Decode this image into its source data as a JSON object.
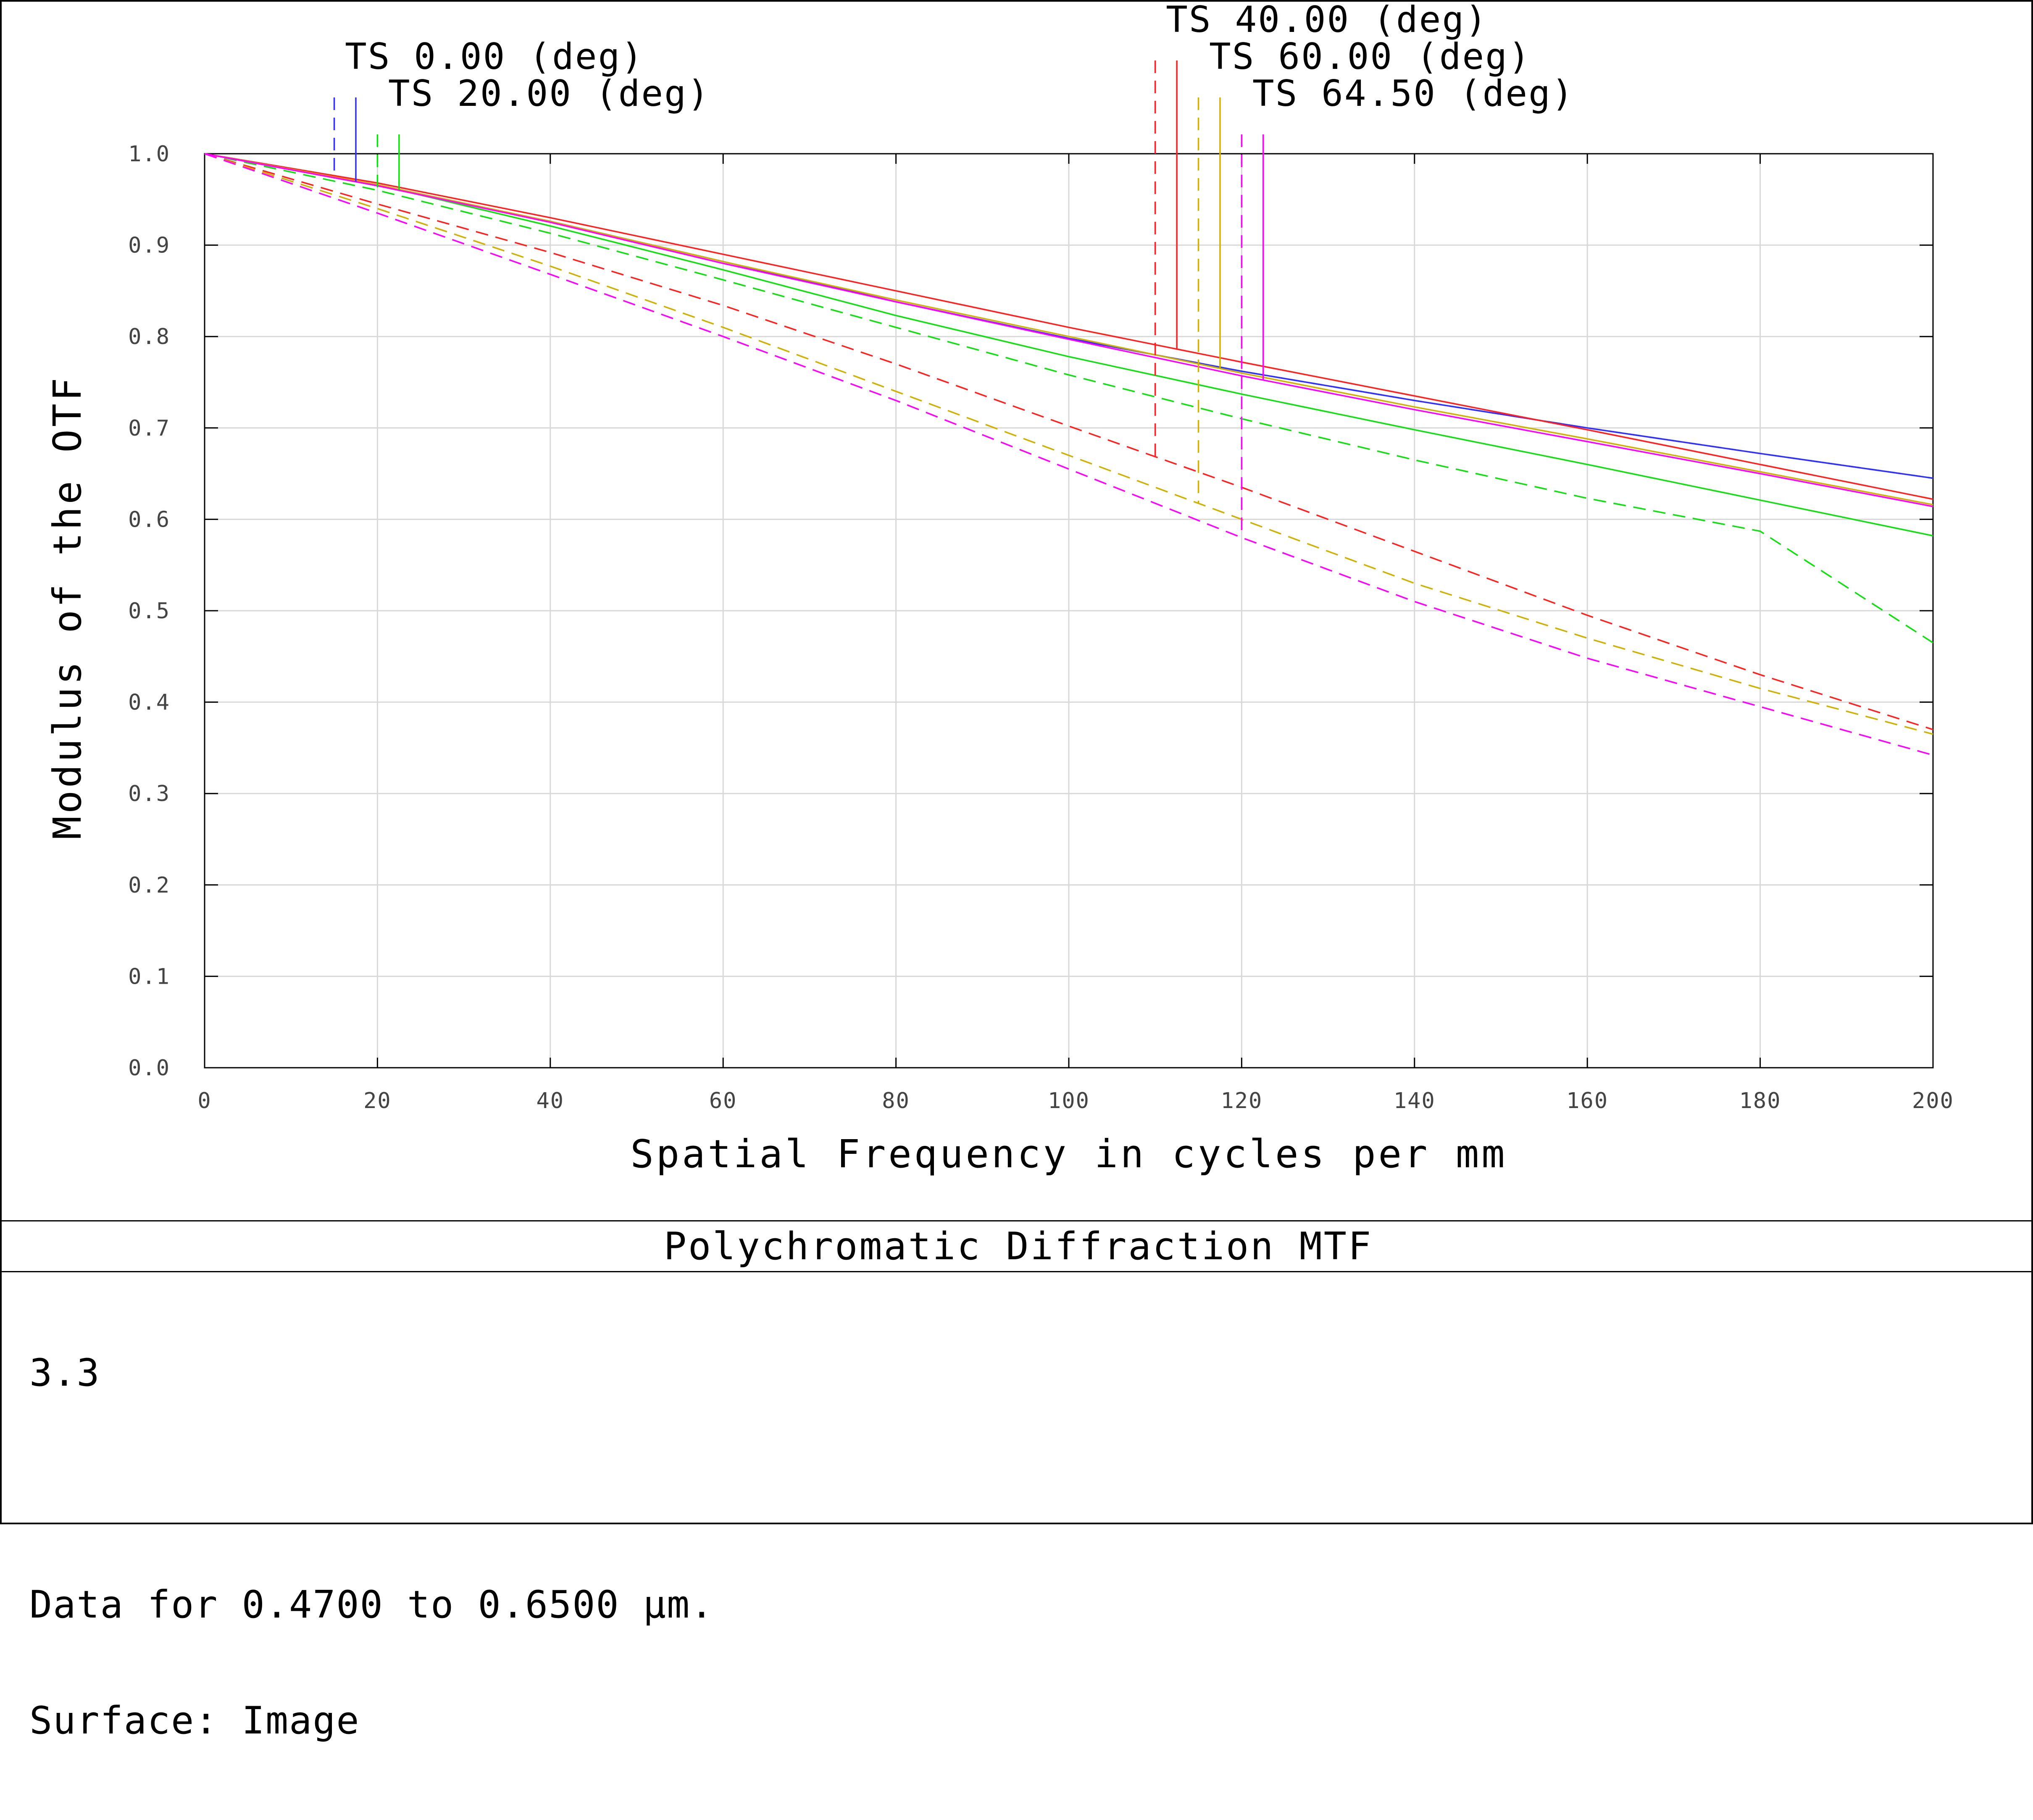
{
  "window": {
    "title": "Polychromatic Diffraction MTF"
  },
  "info": {
    "line1": "3.3",
    "line2": "",
    "line3": "Data for 0.4700 to 0.6500 µm.",
    "line4": "Surface: Image"
  },
  "colors": {
    "ts_0": "#3030ff",
    "ts_20": "#10e010",
    "ts_40": "#ff2020",
    "ts_60": "#d0b000",
    "ts_64_5": "#ff00ff",
    "grid": "#d8d8d8",
    "axis": "#000000"
  },
  "chart_data": {
    "type": "line",
    "title": "Polychromatic Diffraction MTF",
    "xlabel": "Spatial Frequency in cycles per mm",
    "ylabel": "Modulus of the OTF",
    "xlim": [
      0,
      200
    ],
    "ylim": [
      0,
      1
    ],
    "x_ticks": [
      "0",
      "20",
      "40",
      "60",
      "80",
      "100",
      "120",
      "140",
      "160",
      "180",
      "200"
    ],
    "y_ticks": [
      "0.0",
      "0.1",
      "0.2",
      "0.3",
      "0.4",
      "0.5",
      "0.6",
      "0.7",
      "0.8",
      "0.9",
      "1.0"
    ],
    "grid": true,
    "x": [
      0,
      20,
      40,
      60,
      80,
      100,
      120,
      140,
      160,
      180,
      200
    ],
    "fields": [
      {
        "label": "TS 0.00 (deg)",
        "color": "#3030ff",
        "tangential": [
          1.0,
          0.965,
          0.926,
          0.882,
          0.838,
          0.798,
          0.762,
          0.73,
          0.7,
          0.672,
          0.645
        ],
        "sagittal": [
          1.0,
          0.965,
          0.926,
          0.882,
          0.838,
          0.798,
          0.762,
          0.73,
          0.7,
          0.672,
          0.645
        ]
      },
      {
        "label": "TS 20.00 (deg)",
        "color": "#10e010",
        "tangential": [
          1.0,
          0.96,
          0.913,
          0.862,
          0.81,
          0.758,
          0.71,
          0.665,
          0.623,
          0.587,
          0.465
        ],
        "sagittal": [
          1.0,
          0.966,
          0.921,
          0.873,
          0.823,
          0.778,
          0.737,
          0.698,
          0.66,
          0.621,
          0.582
        ]
      },
      {
        "label": "TS 40.00 (deg)",
        "color": "#ff2020",
        "tangential": [
          1.0,
          0.945,
          0.892,
          0.834,
          0.77,
          0.702,
          0.635,
          0.565,
          0.495,
          0.43,
          0.37
        ],
        "sagittal": [
          1.0,
          0.968,
          0.93,
          0.89,
          0.85,
          0.81,
          0.772,
          0.735,
          0.698,
          0.66,
          0.622
        ]
      },
      {
        "label": "TS 60.00 (deg)",
        "color": "#d0b000",
        "tangential": [
          1.0,
          0.94,
          0.877,
          0.81,
          0.74,
          0.67,
          0.6,
          0.53,
          0.47,
          0.415,
          0.365
        ],
        "sagittal": [
          1.0,
          0.966,
          0.926,
          0.882,
          0.84,
          0.8,
          0.76,
          0.723,
          0.688,
          0.652,
          0.616
        ]
      },
      {
        "label": "TS 64.50 (deg)",
        "color": "#ff00ff",
        "tangential": [
          1.0,
          0.935,
          0.868,
          0.8,
          0.73,
          0.655,
          0.58,
          0.51,
          0.448,
          0.395,
          0.342
        ],
        "sagittal": [
          1.0,
          0.965,
          0.925,
          0.88,
          0.838,
          0.797,
          0.757,
          0.72,
          0.685,
          0.65,
          0.614
        ]
      }
    ],
    "legend": "top",
    "legend_marker_x": [
      {
        "label": "TS 0.00 (deg)",
        "tangential_x": 15,
        "sagittal_x": 17.5
      },
      {
        "label": "TS 20.00 (deg)",
        "tangential_x": 20,
        "sagittal_x": 22.5
      },
      {
        "label": "TS 40.00 (deg)",
        "tangential_x": 110,
        "sagittal_x": 112.5
      },
      {
        "label": "TS 60.00 (deg)",
        "tangential_x": 115,
        "sagittal_x": 117.5
      },
      {
        "label": "TS 64.50 (deg)",
        "tangential_x": 120,
        "sagittal_x": 122.5
      }
    ]
  }
}
